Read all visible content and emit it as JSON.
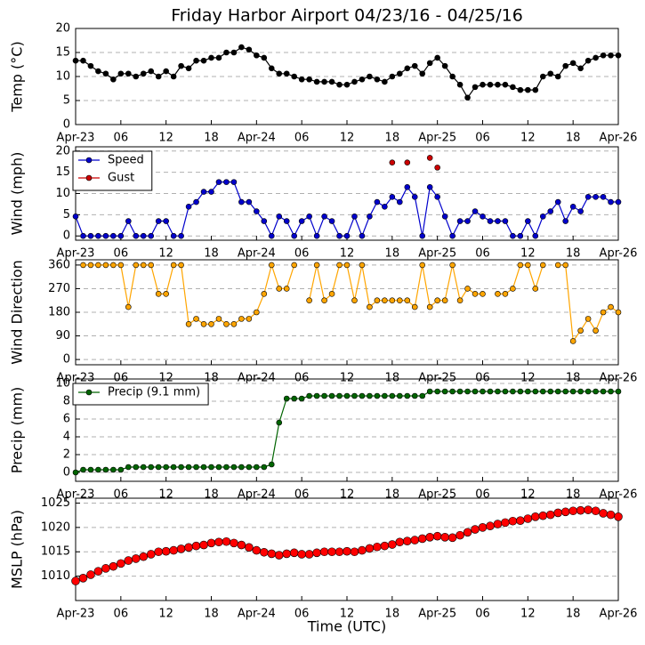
{
  "chart_data": [
    {
      "type": "line",
      "title": "Friday Harbor Airport 04/23/16 - 04/25/16",
      "ylabel": "Temp (°C)",
      "x": [
        0,
        1,
        2,
        3,
        4,
        5,
        6,
        7,
        8,
        9,
        10,
        11,
        12,
        13,
        14,
        15,
        16,
        17,
        18,
        19,
        20,
        21,
        22,
        23,
        24,
        25,
        26,
        27,
        28,
        29,
        30,
        31,
        32,
        33,
        34,
        35,
        36,
        37,
        38,
        39,
        40,
        41,
        42,
        43,
        44,
        45,
        46,
        47,
        48,
        49,
        50,
        51,
        52,
        53,
        54,
        55,
        56,
        57,
        58,
        59,
        60,
        61,
        62,
        63,
        64,
        65,
        66,
        67,
        68,
        69,
        70,
        71,
        72
      ],
      "series": [
        {
          "color": "#000000",
          "values": [
            13.3,
            13.3,
            12.2,
            11.1,
            10.6,
            9.4,
            10.6,
            10.6,
            10,
            10.6,
            11.1,
            10,
            11.1,
            10,
            12.2,
            11.7,
            13.3,
            13.3,
            13.9,
            13.9,
            15,
            15,
            16.1,
            15.6,
            14.4,
            13.9,
            11.7,
            10.6,
            10.6,
            10,
            9.4,
            9.4,
            8.9,
            8.9,
            8.9,
            8.3,
            8.3,
            8.9,
            9.4,
            10,
            9.4,
            8.9,
            10,
            10.6,
            11.7,
            12.2,
            10.6,
            12.8,
            13.9,
            12.2,
            10,
            8.3,
            5.6,
            7.8,
            8.3,
            8.3,
            8.3,
            8.3,
            7.8,
            7.2,
            7.2,
            7.2,
            10,
            10.6,
            10,
            12.2,
            12.8,
            11.7,
            13.3,
            13.9,
            14.4,
            14.4,
            14.4
          ]
        }
      ],
      "xlim": [
        0,
        72
      ],
      "xticks": [
        {
          "value": 0,
          "label": "Apr-23"
        },
        {
          "value": 6,
          "label": "06"
        },
        {
          "value": 12,
          "label": "12"
        },
        {
          "value": 18,
          "label": "18"
        },
        {
          "value": 24,
          "label": "Apr-24"
        },
        {
          "value": 30,
          "label": "06"
        },
        {
          "value": 36,
          "label": "12"
        },
        {
          "value": 42,
          "label": "18"
        },
        {
          "value": 48,
          "label": "Apr-25"
        },
        {
          "value": 54,
          "label": "06"
        },
        {
          "value": 60,
          "label": "12"
        },
        {
          "value": 66,
          "label": "18"
        },
        {
          "value": 72,
          "label": "Apr-26"
        }
      ],
      "ylim": [
        0,
        20
      ],
      "yticks": [
        0,
        5,
        10,
        15,
        20
      ],
      "grid": true
    },
    {
      "type": "line",
      "ylabel": "Wind (mph)",
      "x": [
        0,
        1,
        2,
        3,
        4,
        5,
        6,
        7,
        8,
        9,
        10,
        11,
        12,
        13,
        14,
        15,
        16,
        17,
        18,
        19,
        20,
        21,
        22,
        23,
        24,
        25,
        26,
        27,
        28,
        29,
        30,
        31,
        32,
        33,
        34,
        35,
        36,
        37,
        38,
        39,
        40,
        41,
        42,
        43,
        44,
        45,
        46,
        47,
        48,
        49,
        50,
        51,
        52,
        53,
        54,
        55,
        56,
        57,
        58,
        59,
        60,
        61,
        62,
        63,
        64,
        65,
        66,
        67,
        68,
        69,
        70,
        71,
        72
      ],
      "series": [
        {
          "name": "Speed",
          "color": "#0000cc",
          "line": true,
          "values": [
            4.6,
            0,
            0,
            0,
            0,
            0,
            0,
            3.5,
            0,
            0,
            0,
            3.5,
            3.5,
            0,
            0,
            6.9,
            8,
            10.4,
            10.4,
            12.7,
            12.7,
            12.7,
            8,
            8,
            5.8,
            3.5,
            0,
            4.6,
            3.5,
            0,
            3.5,
            4.6,
            0,
            4.6,
            3.5,
            0,
            0,
            4.6,
            0,
            4.6,
            8,
            6.9,
            9.2,
            8,
            11.5,
            9.2,
            0,
            11.5,
            9.2,
            4.6,
            0,
            3.5,
            3.5,
            5.8,
            4.6,
            3.5,
            3.5,
            3.5,
            0,
            0,
            3.5,
            0,
            4.6,
            5.8,
            8,
            3.5,
            6.9,
            5.8,
            9.2,
            9.2,
            9.2,
            8,
            8
          ]
        },
        {
          "name": "Gust",
          "color": "#cc0000",
          "line": false,
          "values": [
            null,
            null,
            null,
            null,
            null,
            null,
            null,
            null,
            null,
            null,
            null,
            null,
            null,
            null,
            null,
            null,
            null,
            null,
            null,
            null,
            null,
            null,
            null,
            null,
            null,
            null,
            null,
            null,
            null,
            null,
            null,
            null,
            null,
            null,
            null,
            null,
            null,
            null,
            null,
            null,
            null,
            null,
            17.3,
            null,
            17.3,
            null,
            null,
            18.4,
            16.1,
            null,
            null,
            null,
            null,
            null,
            null,
            null,
            null,
            null,
            null,
            null,
            null,
            null,
            null,
            null,
            null,
            null,
            null,
            null,
            null,
            null,
            null,
            null,
            null
          ]
        }
      ],
      "xlim": [
        0,
        72
      ],
      "xticks": [
        {
          "value": 0,
          "label": "Apr-23"
        },
        {
          "value": 6,
          "label": "06"
        },
        {
          "value": 12,
          "label": "12"
        },
        {
          "value": 18,
          "label": "18"
        },
        {
          "value": 24,
          "label": "Apr-24"
        },
        {
          "value": 30,
          "label": "06"
        },
        {
          "value": 36,
          "label": "12"
        },
        {
          "value": 42,
          "label": "18"
        },
        {
          "value": 48,
          "label": "Apr-25"
        },
        {
          "value": 54,
          "label": "06"
        },
        {
          "value": 60,
          "label": "12"
        },
        {
          "value": 66,
          "label": "18"
        },
        {
          "value": 72,
          "label": "Apr-26"
        }
      ],
      "ylim": [
        -1,
        21
      ],
      "yticks": [
        0,
        5,
        10,
        15,
        20
      ],
      "grid": true,
      "legend": "upper left"
    },
    {
      "type": "line",
      "ylabel": "Wind Direction",
      "x": [
        0,
        1,
        2,
        3,
        4,
        5,
        6,
        7,
        8,
        9,
        10,
        11,
        12,
        13,
        14,
        15,
        16,
        17,
        18,
        19,
        20,
        21,
        22,
        23,
        24,
        25,
        26,
        27,
        28,
        29,
        30,
        31,
        32,
        33,
        34,
        35,
        36,
        37,
        38,
        39,
        40,
        41,
        42,
        43,
        44,
        45,
        46,
        47,
        48,
        49,
        50,
        51,
        52,
        53,
        54,
        55,
        56,
        57,
        58,
        59,
        60,
        61,
        62,
        63,
        64,
        65,
        66,
        67,
        68,
        69,
        70,
        71,
        72
      ],
      "series": [
        {
          "color": "#ffa500",
          "line": true,
          "values": [
            null,
            360,
            360,
            360,
            360,
            360,
            360,
            200,
            360,
            360,
            360,
            250,
            250,
            360,
            360,
            135,
            155,
            135,
            135,
            155,
            135,
            135,
            155,
            155,
            180,
            250,
            360,
            270,
            270,
            360,
            null,
            225,
            360,
            225,
            250,
            360,
            360,
            225,
            360,
            200,
            225,
            225,
            225,
            225,
            225,
            200,
            360,
            200,
            225,
            225,
            360,
            225,
            270,
            250,
            250,
            null,
            250,
            250,
            270,
            360,
            360,
            270,
            360,
            null,
            360,
            360,
            70,
            110,
            155,
            110,
            180,
            200,
            180
          ]
        }
      ],
      "xlim": [
        0,
        72
      ],
      "xticks": [
        {
          "value": 0,
          "label": "Apr-23"
        },
        {
          "value": 6,
          "label": "06"
        },
        {
          "value": 12,
          "label": "12"
        },
        {
          "value": 18,
          "label": "18"
        },
        {
          "value": 24,
          "label": "Apr-24"
        },
        {
          "value": 30,
          "label": "06"
        },
        {
          "value": 36,
          "label": "12"
        },
        {
          "value": 42,
          "label": "18"
        },
        {
          "value": 48,
          "label": "Apr-25"
        },
        {
          "value": 54,
          "label": "06"
        },
        {
          "value": 60,
          "label": "12"
        },
        {
          "value": 66,
          "label": "18"
        },
        {
          "value": 72,
          "label": "Apr-26"
        }
      ],
      "ylim": [
        -20,
        380
      ],
      "yticks": [
        0,
        90,
        180,
        270,
        360
      ],
      "grid": true
    },
    {
      "type": "line",
      "ylabel": "Precip (mm)",
      "x": [
        0,
        1,
        2,
        3,
        4,
        5,
        6,
        7,
        8,
        9,
        10,
        11,
        12,
        13,
        14,
        15,
        16,
        17,
        18,
        19,
        20,
        21,
        22,
        23,
        24,
        25,
        26,
        27,
        28,
        29,
        30,
        31,
        32,
        33,
        34,
        35,
        36,
        37,
        38,
        39,
        40,
        41,
        42,
        43,
        44,
        45,
        46,
        47,
        48,
        49,
        50,
        51,
        52,
        53,
        54,
        55,
        56,
        57,
        58,
        59,
        60,
        61,
        62,
        63,
        64,
        65,
        66,
        67,
        68,
        69,
        70,
        71,
        72
      ],
      "series": [
        {
          "name": "Precip (9.1 mm)",
          "color": "#006400",
          "line": true,
          "values": [
            0,
            0.3,
            0.3,
            0.3,
            0.3,
            0.3,
            0.3,
            0.6,
            0.6,
            0.6,
            0.6,
            0.6,
            0.6,
            0.6,
            0.6,
            0.6,
            0.6,
            0.6,
            0.6,
            0.6,
            0.6,
            0.6,
            0.6,
            0.6,
            0.6,
            0.6,
            0.9,
            5.6,
            8.3,
            8.3,
            8.3,
            8.6,
            8.6,
            8.6,
            8.6,
            8.6,
            8.6,
            8.6,
            8.6,
            8.6,
            8.6,
            8.6,
            8.6,
            8.6,
            8.6,
            8.6,
            8.6,
            9.1,
            9.1,
            9.1,
            9.1,
            9.1,
            9.1,
            9.1,
            9.1,
            9.1,
            9.1,
            9.1,
            9.1,
            9.1,
            9.1,
            9.1,
            9.1,
            9.1,
            9.1,
            9.1,
            9.1,
            9.1,
            9.1,
            9.1,
            9.1,
            9.1,
            9.1
          ]
        }
      ],
      "xlim": [
        0,
        72
      ],
      "xticks": [
        {
          "value": 0,
          "label": "Apr-23"
        },
        {
          "value": 6,
          "label": "06"
        },
        {
          "value": 12,
          "label": "12"
        },
        {
          "value": 18,
          "label": "18"
        },
        {
          "value": 24,
          "label": "Apr-24"
        },
        {
          "value": 30,
          "label": "06"
        },
        {
          "value": 36,
          "label": "12"
        },
        {
          "value": 42,
          "label": "18"
        },
        {
          "value": 48,
          "label": "Apr-25"
        },
        {
          "value": 54,
          "label": "06"
        },
        {
          "value": 60,
          "label": "12"
        },
        {
          "value": 66,
          "label": "18"
        },
        {
          "value": 72,
          "label": "Apr-26"
        }
      ],
      "ylim": [
        -1,
        10.5
      ],
      "yticks": [
        0,
        2,
        4,
        6,
        8,
        10
      ],
      "grid": true,
      "legend": "upper left"
    },
    {
      "type": "line",
      "ylabel": "MSLP (hPa)",
      "xlabel": "Time (UTC)",
      "x": [
        0,
        1,
        2,
        3,
        4,
        5,
        6,
        7,
        8,
        9,
        10,
        11,
        12,
        13,
        14,
        15,
        16,
        17,
        18,
        19,
        20,
        21,
        22,
        23,
        24,
        25,
        26,
        27,
        28,
        29,
        30,
        31,
        32,
        33,
        34,
        35,
        36,
        37,
        38,
        39,
        40,
        41,
        42,
        43,
        44,
        45,
        46,
        47,
        48,
        49,
        50,
        51,
        52,
        53,
        54,
        55,
        56,
        57,
        58,
        59,
        60,
        61,
        62,
        63,
        64,
        65,
        66,
        67,
        68,
        69,
        70,
        71,
        72
      ],
      "series": [
        {
          "color": "#ff0000",
          "line": true,
          "values": [
            1009,
            1009.6,
            1010.3,
            1011,
            1011.6,
            1012,
            1012.6,
            1013.2,
            1013.6,
            1014,
            1014.5,
            1015,
            1015.1,
            1015.3,
            1015.6,
            1015.9,
            1016.2,
            1016.4,
            1016.8,
            1017,
            1017.1,
            1016.8,
            1016.4,
            1015.9,
            1015.3,
            1014.9,
            1014.6,
            1014.3,
            1014.6,
            1014.8,
            1014.5,
            1014.5,
            1014.8,
            1015,
            1015,
            1015,
            1015.1,
            1015,
            1015.3,
            1015.7,
            1016,
            1016.2,
            1016.5,
            1017,
            1017.2,
            1017.4,
            1017.7,
            1018,
            1018.2,
            1018,
            1017.9,
            1018.4,
            1019,
            1019.6,
            1020,
            1020.3,
            1020.7,
            1021,
            1021.3,
            1021.4,
            1021.8,
            1022.2,
            1022.4,
            1022.6,
            1023,
            1023.2,
            1023.4,
            1023.5,
            1023.6,
            1023.4,
            1022.9,
            1022.6,
            1022.2
          ]
        }
      ],
      "xlim": [
        0,
        72
      ],
      "xticks": [
        {
          "value": 0,
          "label": "Apr-23"
        },
        {
          "value": 6,
          "label": "06"
        },
        {
          "value": 12,
          "label": "12"
        },
        {
          "value": 18,
          "label": "18"
        },
        {
          "value": 24,
          "label": "Apr-24"
        },
        {
          "value": 30,
          "label": "06"
        },
        {
          "value": 36,
          "label": "12"
        },
        {
          "value": 42,
          "label": "18"
        },
        {
          "value": 48,
          "label": "Apr-25"
        },
        {
          "value": 54,
          "label": "06"
        },
        {
          "value": 60,
          "label": "12"
        },
        {
          "value": 66,
          "label": "18"
        },
        {
          "value": 72,
          "label": "Apr-26"
        }
      ],
      "ylim": [
        1005,
        1026
      ],
      "yticks": [
        1010,
        1015,
        1020,
        1025
      ],
      "grid": true
    }
  ]
}
